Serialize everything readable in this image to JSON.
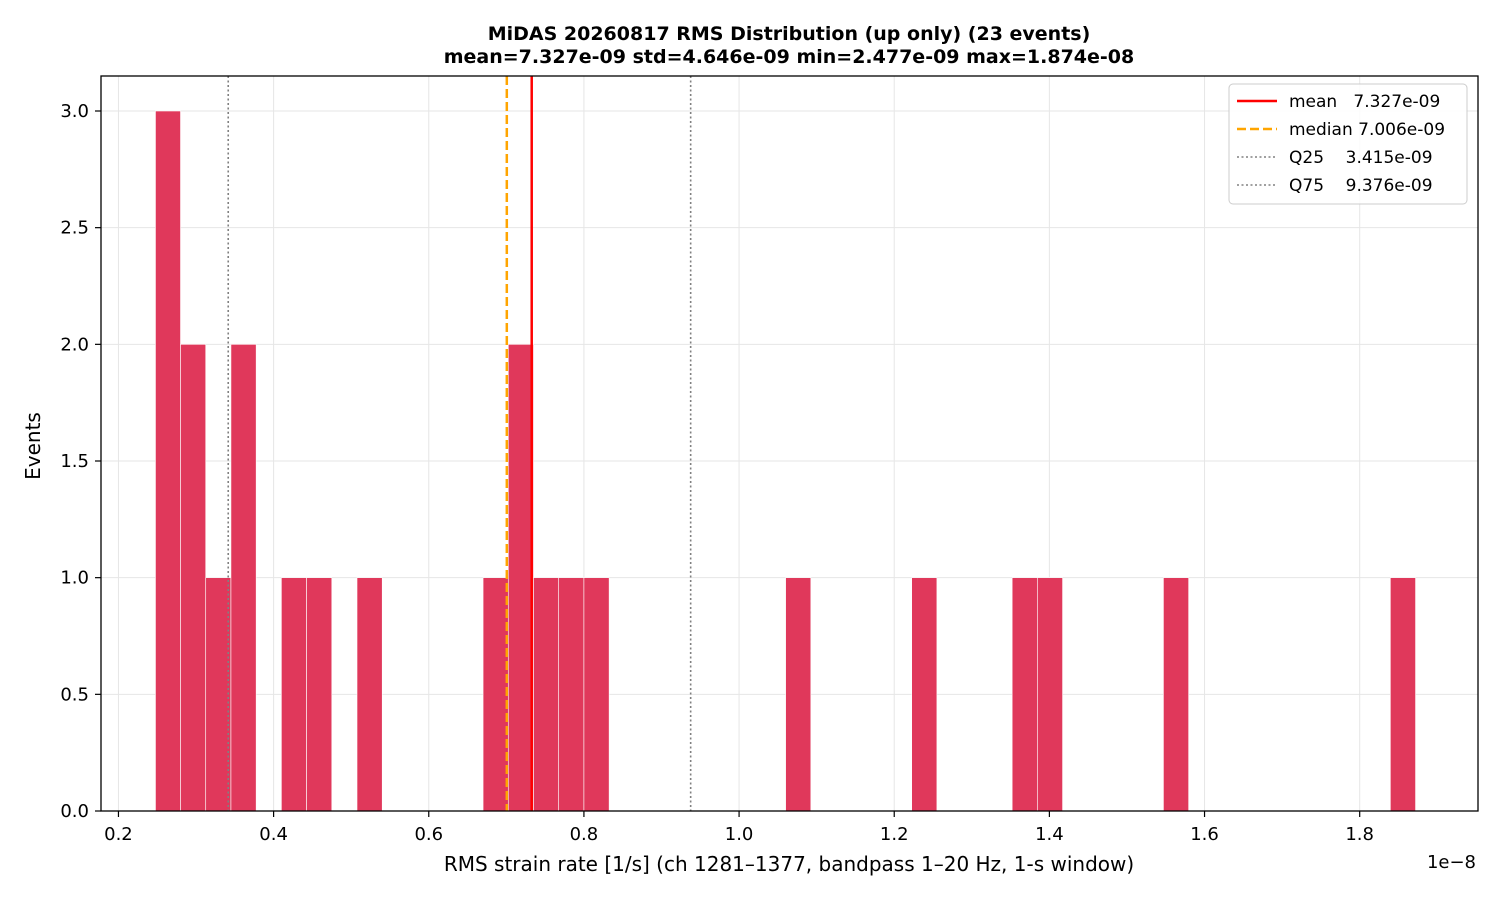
{
  "chart_data": {
    "type": "bar",
    "title": "MiDAS 20260817  RMS Distribution  (up only)  (23 events)",
    "subtitle": "mean=7.327e-09  std=4.646e-09  min=2.477e-09  max=1.874e-08",
    "xlabel": "RMS strain rate [1/s]  (ch 1281–1377, bandpass 1–20 Hz, 1-s window)",
    "ylabel": "Events",
    "x_offset_label": "1e−8",
    "xlim": [
      0.1775,
      1.9525
    ],
    "ylim": [
      0,
      3.15
    ],
    "x_ticks": [
      0.2,
      0.4,
      0.6,
      0.8,
      1.0,
      1.2,
      1.4,
      1.6,
      1.8
    ],
    "x_tick_labels": [
      "0.2",
      "0.4",
      "0.6",
      "0.8",
      "1.0",
      "1.2",
      "1.4",
      "1.6",
      "1.8"
    ],
    "y_ticks": [
      0.0,
      0.5,
      1.0,
      1.5,
      2.0,
      2.5,
      3.0
    ],
    "y_tick_labels": [
      "0.0",
      "0.5",
      "1.0",
      "1.5",
      "2.0",
      "2.5",
      "3.0"
    ],
    "grid": true,
    "bar_color": "#e0385b",
    "bins": [
      {
        "x0": 0.2477,
        "x1": 0.28,
        "count": 3
      },
      {
        "x0": 0.28,
        "x1": 0.3125,
        "count": 2
      },
      {
        "x0": 0.3125,
        "x1": 0.345,
        "count": 1
      },
      {
        "x0": 0.345,
        "x1": 0.3775,
        "count": 2
      },
      {
        "x0": 0.41,
        "x1": 0.4425,
        "count": 1
      },
      {
        "x0": 0.4425,
        "x1": 0.475,
        "count": 1
      },
      {
        "x0": 0.5075,
        "x1": 0.54,
        "count": 1
      },
      {
        "x0": 0.67,
        "x1": 0.7025,
        "count": 1
      },
      {
        "x0": 0.7025,
        "x1": 0.735,
        "count": 2
      },
      {
        "x0": 0.735,
        "x1": 0.7675,
        "count": 1
      },
      {
        "x0": 0.7675,
        "x1": 0.8,
        "count": 1
      },
      {
        "x0": 0.8,
        "x1": 0.8325,
        "count": 1
      },
      {
        "x0": 1.06,
        "x1": 1.0925,
        "count": 1
      },
      {
        "x0": 1.2225,
        "x1": 1.255,
        "count": 1
      },
      {
        "x0": 1.352,
        "x1": 1.3845,
        "count": 1
      },
      {
        "x0": 1.3845,
        "x1": 1.417,
        "count": 1
      },
      {
        "x0": 1.547,
        "x1": 1.5795,
        "count": 1
      },
      {
        "x0": 1.8395,
        "x1": 1.872,
        "count": 1
      }
    ],
    "reference_lines": [
      {
        "name": "mean",
        "label": "mean   7.327e-09",
        "x": 0.7327,
        "color": "#ff0000",
        "style": "solid"
      },
      {
        "name": "median",
        "label": "median 7.006e-09",
        "x": 0.7006,
        "color": "#ffa500",
        "style": "dashed"
      },
      {
        "name": "Q25",
        "label": "Q25    3.415e-09",
        "x": 0.3415,
        "color": "#808080",
        "style": "dotted"
      },
      {
        "name": "Q75",
        "label": "Q75    9.376e-09",
        "x": 0.9376,
        "color": "#808080",
        "style": "dotted"
      }
    ],
    "legend_position": "top-right"
  }
}
